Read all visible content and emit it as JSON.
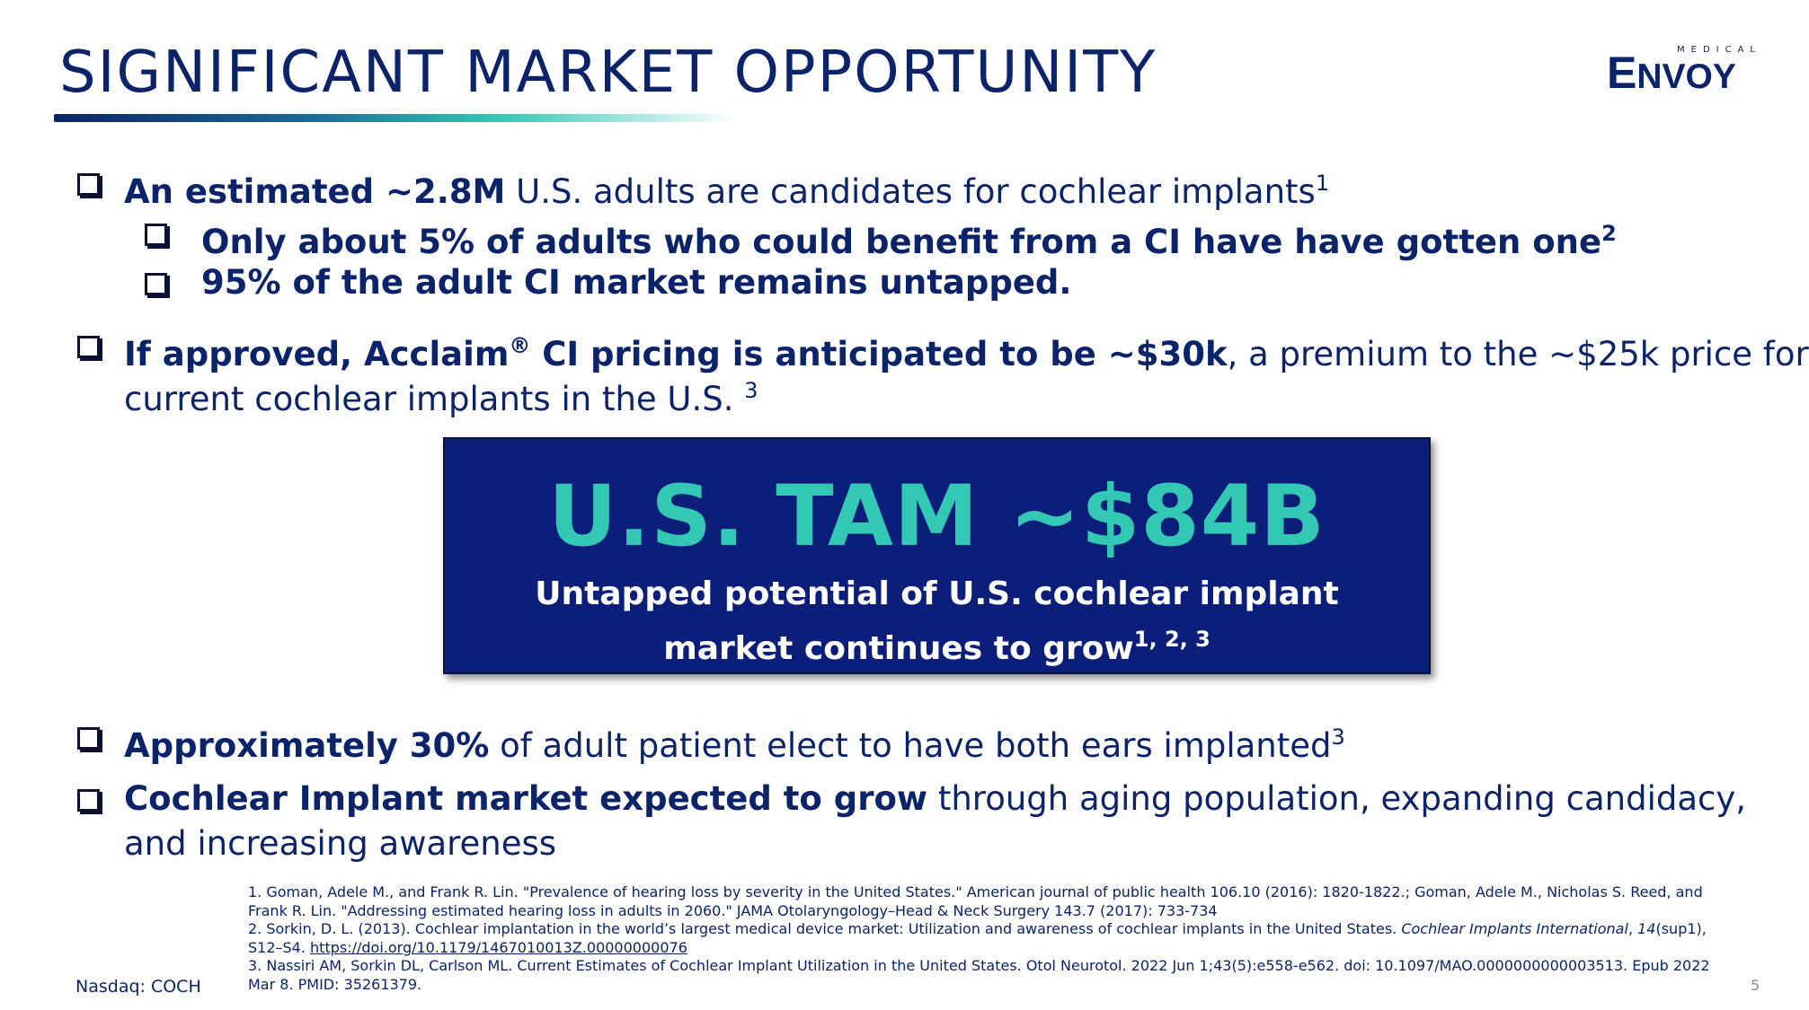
{
  "slide": {
    "title": "SIGNIFICANT MARKET OPPORTUNITY",
    "logo": {
      "small_text": "MEDICAL",
      "brand": "ENVOY"
    },
    "colors": {
      "navy": "#0b2369",
      "teal": "#33c8b4",
      "box": "#0b1f7a"
    },
    "bullets": {
      "b1": {
        "bold": "An estimated ~2.8M",
        "text": " U.S. adults are candidates for cochlear implants",
        "sup": "1"
      },
      "b1a": {
        "bold": "Only about 5% of adults who could benefit from a CI have have gotten one",
        "sup": "2"
      },
      "b1b": {
        "bold": "95% of the adult CI market remains untapped."
      },
      "b2": {
        "bold_pre": "If approved, Acclaim",
        "reg": "®",
        "bold_post": " CI pricing is anticipated to be ~$30k",
        "text": ", a premium to the ~$25k price for",
        "line2": "current cochlear implants in the U.S.",
        "sup": "3"
      },
      "b3": {
        "bold": "Approximately 30%",
        "text": " of adult patient elect to have both ears implanted",
        "sup": "3"
      },
      "b4": {
        "bold": "Cochlear Implant market expected to grow",
        "text": " through aging population, expanding candidacy,",
        "line2": "and increasing awareness"
      }
    },
    "tam": {
      "headline": "U.S. TAM ~$84B",
      "sub_line1": "Untapped potential of U.S. cochlear implant",
      "sub_line2": "market continues to grow",
      "sup": "1, 2, 3"
    },
    "footnotes": {
      "f1": "1. Goman, Adele M., and Frank R. Lin. \"Prevalence of hearing loss by severity in the United States.\" American journal of public health 106.10 (2016): 1820-1822.; Goman, Adele M., Nicholas S. Reed, and Frank R. Lin. \"Addressing estimated hearing loss in adults in 2060.\" JAMA Otolaryngology–Head & Neck Surgery 143.7 (2017): 733-734",
      "f2_pre": "2. Sorkin, D. L. (2013). Cochlear implantation in the world’s largest medical device market: Utilization and awareness of cochlear implants in the United States. ",
      "f2_journal": "Cochlear Implants International",
      "f2_comma": ", ",
      "f2_vol": "14",
      "f2_post": "(sup1), S12–S4. ",
      "f2_link": "https://doi.org/10.1179/1467010013Z.00000000076",
      "f3": "3. Nassiri AM, Sorkin DL, Carlson ML. Current Estimates of Cochlear Implant Utilization in the United States. Otol Neurotol. 2022 Jun 1;43(5):e558-e562. doi: 10.1097/MAO.0000000000003513. Epub 2022 Mar 8. PMID: 35261379."
    },
    "footer": {
      "ticker": "Nasdaq: COCH",
      "page": "5"
    }
  }
}
